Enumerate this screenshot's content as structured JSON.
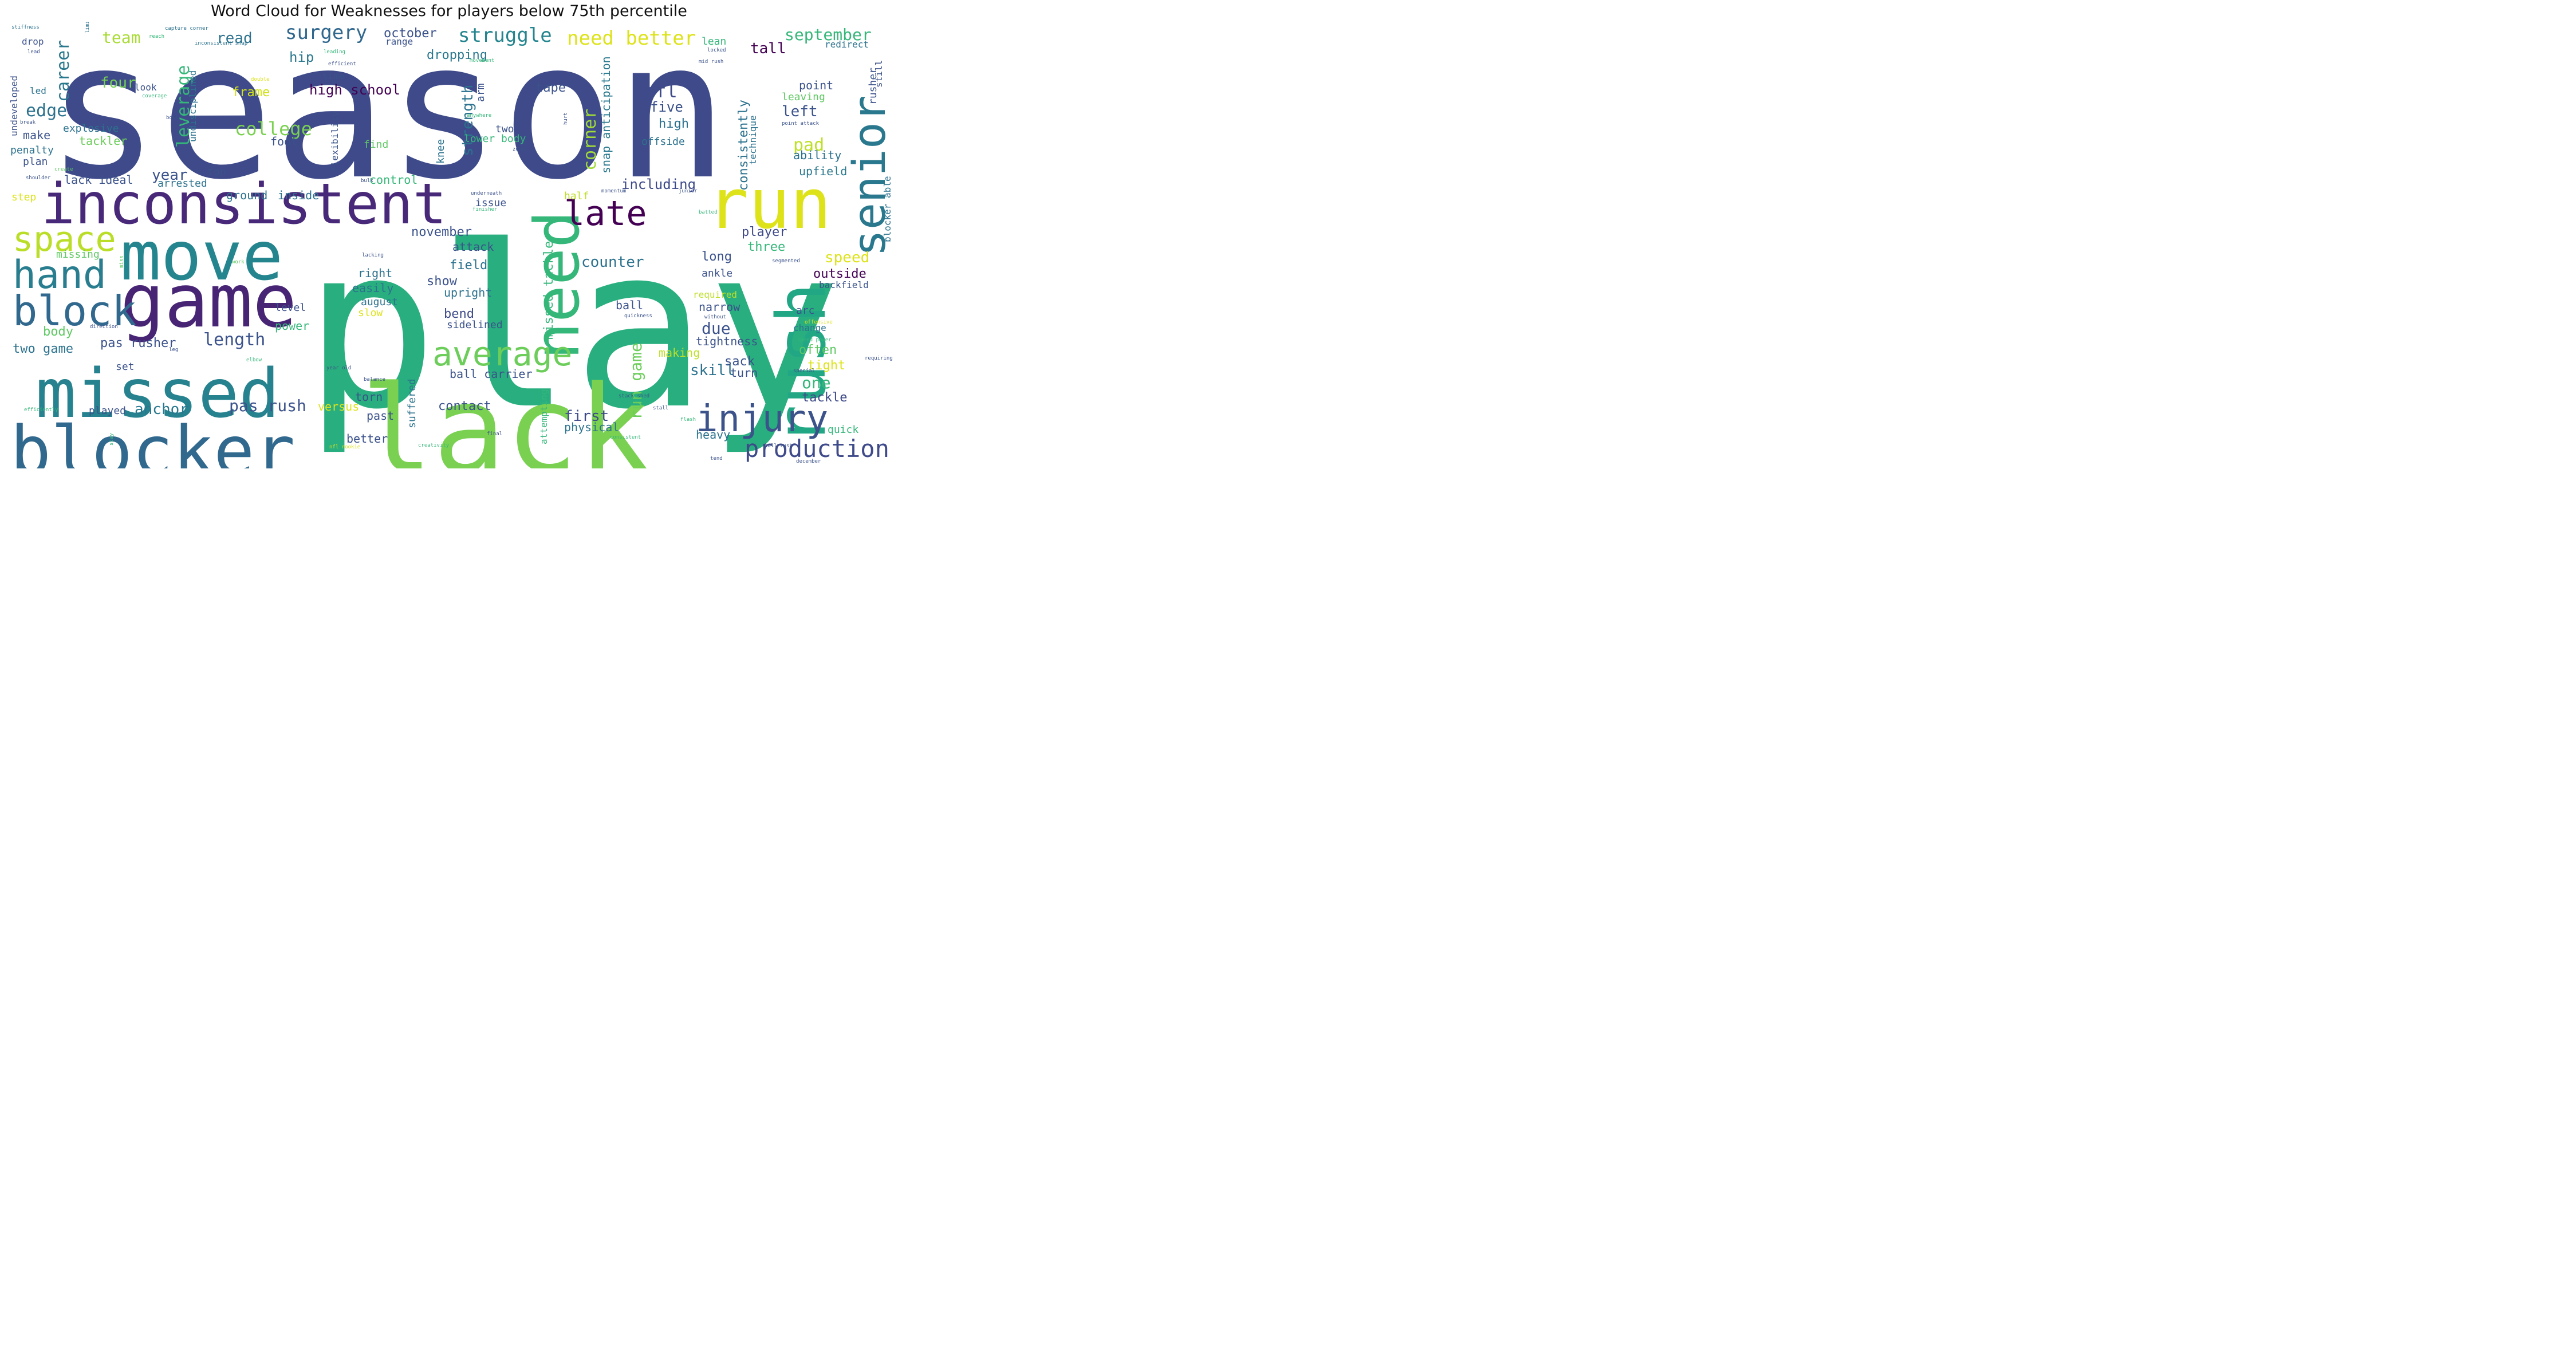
{
  "title": "Word Cloud for Weaknesses for players below 75th percentile",
  "palette": [
    "#440154",
    "#472c7a",
    "#3b518b",
    "#2c718e",
    "#21908d",
    "#27ad81",
    "#5cc863",
    "#aadc32",
    "#dde318"
  ],
  "words": [
    {
      "text": "season",
      "color": "#3e4a89"
    },
    {
      "text": "play",
      "color": "#29af7f"
    },
    {
      "text": "lack",
      "color": "#7ad151"
    },
    {
      "text": "blocker",
      "color": "#31688e"
    },
    {
      "text": "missed",
      "color": "#26828e"
    },
    {
      "text": "inconsistent",
      "color": "#482878"
    },
    {
      "text": "game",
      "color": "#482475"
    },
    {
      "text": "move",
      "color": "#25858e"
    },
    {
      "text": "run",
      "color": "#dde318"
    },
    {
      "text": "rush",
      "color": "#22a785"
    },
    {
      "text": "need",
      "color": "#35b779"
    },
    {
      "text": "senior",
      "color": "#2a788e"
    },
    {
      "text": "block",
      "color": "#31688e"
    },
    {
      "text": "hand",
      "color": "#287d8e"
    },
    {
      "text": "space",
      "color": "#bade28"
    },
    {
      "text": "late",
      "color": "#440154"
    },
    {
      "text": "injury",
      "color": "#3b528b"
    },
    {
      "text": "average",
      "color": "#6ccd5a"
    },
    {
      "text": "production",
      "color": "#3e4a89"
    },
    {
      "text": "surgery",
      "color": "#31688e"
    },
    {
      "text": "struggle",
      "color": "#25858e"
    },
    {
      "text": "need better",
      "color": "#dde318"
    },
    {
      "text": "career",
      "color": "#2a788e"
    },
    {
      "text": "edge",
      "color": "#2c728e"
    },
    {
      "text": "leverage",
      "color": "#35b779"
    },
    {
      "text": "college",
      "color": "#7ad151"
    },
    {
      "text": "nfl",
      "color": "#3e4a89"
    },
    {
      "text": "corner",
      "color": "#a0da39"
    },
    {
      "text": "length",
      "color": "#3b528b"
    },
    {
      "text": "team",
      "color": "#a8db34"
    },
    {
      "text": "read",
      "color": "#2c728e"
    },
    {
      "text": "october",
      "color": "#3b528b"
    },
    {
      "text": "september",
      "color": "#35b779"
    },
    {
      "text": "tall",
      "color": "#440154"
    },
    {
      "text": "hip",
      "color": "#2a788e"
    },
    {
      "text": "dropping",
      "color": "#2a788e"
    },
    {
      "text": "four",
      "color": "#75d054"
    },
    {
      "text": "frame",
      "color": "#d0e11c"
    },
    {
      "text": "high school",
      "color": "#440154"
    },
    {
      "text": "strength",
      "color": "#2c728e"
    },
    {
      "text": "tape",
      "color": "#3b528b"
    },
    {
      "text": "five",
      "color": "#3b528b"
    },
    {
      "text": "left",
      "color": "#3b528b"
    },
    {
      "text": "pad",
      "color": "#bddf26"
    },
    {
      "text": "consistently",
      "color": "#2c728e"
    },
    {
      "text": "snap anticipation",
      "color": "#2a788e"
    },
    {
      "text": "year",
      "color": "#3b528b"
    },
    {
      "text": "including",
      "color": "#3e4a89"
    },
    {
      "text": "pas rush",
      "color": "#3b528b"
    },
    {
      "text": "anchor",
      "color": "#2a788e"
    },
    {
      "text": "run game",
      "color": "#6ccd5a"
    },
    {
      "text": "first",
      "color": "#3e4a89"
    },
    {
      "text": "missed tackle",
      "color": "#35b779"
    },
    {
      "text": "counter",
      "color": "#2c728e"
    },
    {
      "text": "november",
      "color": "#3b528b"
    },
    {
      "text": "player",
      "color": "#3e4a89"
    },
    {
      "text": "show",
      "color": "#3b528b"
    },
    {
      "text": "speed",
      "color": "#dde318"
    },
    {
      "text": "outside",
      "color": "#440154"
    },
    {
      "text": "skill",
      "color": "#2c728e"
    },
    {
      "text": "one",
      "color": "#35b779"
    },
    {
      "text": "contact",
      "color": "#3b528b"
    },
    {
      "text": "due",
      "color": "#3b528b"
    },
    {
      "text": "body",
      "color": "#5ec962"
    },
    {
      "text": "pas rusher",
      "color": "#3b528b"
    },
    {
      "text": "two game",
      "color": "#2c728e"
    },
    {
      "text": "upfield",
      "color": "#2a788e"
    },
    {
      "text": "ability",
      "color": "#2c728e"
    },
    {
      "text": "high",
      "color": "#2c728e"
    },
    {
      "text": "offside",
      "color": "#2c728e"
    },
    {
      "text": "lack ideal",
      "color": "#3b528b"
    },
    {
      "text": "inside",
      "color": "#2c728e"
    },
    {
      "text": "ground",
      "color": "#2c728e"
    },
    {
      "text": "control",
      "color": "#35b779"
    },
    {
      "text": "bend",
      "color": "#3e4a89"
    },
    {
      "text": "sidelined",
      "color": "#3b528b"
    },
    {
      "text": "upright",
      "color": "#2c728e"
    },
    {
      "text": "field",
      "color": "#2c728e"
    },
    {
      "text": "attack",
      "color": "#3b528b"
    },
    {
      "text": "tackle",
      "color": "#3e4a89"
    },
    {
      "text": "often",
      "color": "#5ec962"
    },
    {
      "text": "tight",
      "color": "#dde318"
    },
    {
      "text": "sack",
      "color": "#3b528b"
    },
    {
      "text": "turn",
      "color": "#3b528b"
    },
    {
      "text": "narrow",
      "color": "#3b528b"
    },
    {
      "text": "ball",
      "color": "#3b528b"
    },
    {
      "text": "ball carrier",
      "color": "#3b528b"
    },
    {
      "text": "suffered",
      "color": "#2c728e"
    },
    {
      "text": "making",
      "color": "#bddf26"
    },
    {
      "text": "tightness",
      "color": "#3b528b"
    },
    {
      "text": "heavy",
      "color": "#2c728e"
    },
    {
      "text": "physical",
      "color": "#2c728e"
    },
    {
      "text": "better",
      "color": "#3b528b"
    },
    {
      "text": "versus",
      "color": "#dde318"
    },
    {
      "text": "past",
      "color": "#3b528b"
    },
    {
      "text": "torn",
      "color": "#3b528b"
    },
    {
      "text": "played",
      "color": "#3b528b"
    },
    {
      "text": "set",
      "color": "#3b528b"
    },
    {
      "text": "power",
      "color": "#35b779"
    },
    {
      "text": "level",
      "color": "#3b528b"
    },
    {
      "text": "tackler",
      "color": "#6ccd5a"
    },
    {
      "text": "make",
      "color": "#3b528b"
    },
    {
      "text": "explosive",
      "color": "#2c728e"
    },
    {
      "text": "penalty",
      "color": "#2c728e"
    },
    {
      "text": "plan",
      "color": "#3b528b"
    },
    {
      "text": "foot",
      "color": "#3b528b"
    },
    {
      "text": "two",
      "color": "#3b528b"
    },
    {
      "text": "lower body",
      "color": "#35b779"
    },
    {
      "text": "find",
      "color": "#5ec962"
    },
    {
      "text": "knee",
      "color": "#2c728e"
    },
    {
      "text": "arm",
      "color": "#3b528b"
    },
    {
      "text": "flexibility",
      "color": "#3b528b"
    },
    {
      "text": "undisciplined",
      "color": "#2c728e"
    },
    {
      "text": "undeveloped",
      "color": "#3b528b"
    },
    {
      "text": "led",
      "color": "#2c728e"
    },
    {
      "text": "look",
      "color": "#3b528b"
    },
    {
      "text": "drop",
      "color": "#3b528b"
    },
    {
      "text": "time",
      "color": "#3b528b"
    },
    {
      "text": "range",
      "color": "#3b528b"
    },
    {
      "text": "lean",
      "color": "#35b779"
    },
    {
      "text": "point",
      "color": "#3b528b"
    },
    {
      "text": "leaving",
      "color": "#5ec962"
    },
    {
      "text": "rusher",
      "color": "#3b528b"
    },
    {
      "text": "still",
      "color": "#3b528b"
    },
    {
      "text": "technique",
      "color": "#2c728e"
    },
    {
      "text": "blocker able",
      "color": "#2c728e"
    },
    {
      "text": "redirect",
      "color": "#2c728e"
    },
    {
      "text": "long",
      "color": "#3b528b"
    },
    {
      "text": "three",
      "color": "#35b779"
    },
    {
      "text": "ankle",
      "color": "#3b528b"
    },
    {
      "text": "backfield",
      "color": "#3b528b"
    },
    {
      "text": "required",
      "color": "#bddf26"
    },
    {
      "text": "arc",
      "color": "#3b528b"
    },
    {
      "text": "change",
      "color": "#2c728e"
    },
    {
      "text": "quick",
      "color": "#35b779"
    },
    {
      "text": "right",
      "color": "#2c728e"
    },
    {
      "text": "easily",
      "color": "#2c728e"
    },
    {
      "text": "august",
      "color": "#2c728e"
    },
    {
      "text": "slow",
      "color": "#dde318"
    },
    {
      "text": "half",
      "color": "#bddf26"
    },
    {
      "text": "top",
      "color": "#3b528b"
    },
    {
      "text": "arrested",
      "color": "#2c728e"
    },
    {
      "text": "issue",
      "color": "#3b528b"
    },
    {
      "text": "attempting",
      "color": "#35b779"
    },
    {
      "text": "missing",
      "color": "#5ec962"
    },
    {
      "text": "step",
      "color": "#dde318"
    },
    {
      "text": "stiffness",
      "color": "#2c728e"
    },
    {
      "text": "limited",
      "color": "#2c728e"
    },
    {
      "text": "capture corner",
      "color": "#2c728e"
    },
    {
      "text": "reach",
      "color": "#35b779"
    },
    {
      "text": "inconsistent snap",
      "color": "#2c728e"
    },
    {
      "text": "lead",
      "color": "#3b528b"
    },
    {
      "text": "leading",
      "color": "#35b779"
    },
    {
      "text": "efficient",
      "color": "#3b528b"
    },
    {
      "text": "movement",
      "color": "#35b779"
    },
    {
      "text": "locked",
      "color": "#3b528b"
    },
    {
      "text": "mid rush",
      "color": "#3b528b"
    },
    {
      "text": "double",
      "color": "#dde318"
    },
    {
      "text": "coverage",
      "color": "#35b779"
    },
    {
      "text": "bowl",
      "color": "#3b528b"
    },
    {
      "text": "break",
      "color": "#3b528b"
    },
    {
      "text": "anywhere",
      "color": "#35b779"
    },
    {
      "text": "hurt",
      "color": "#3b528b"
    },
    {
      "text": "point attack",
      "color": "#3b528b"
    },
    {
      "text": "zone",
      "color": "#3b528b"
    },
    {
      "text": "create",
      "color": "#5ec962"
    },
    {
      "text": "shoulder",
      "color": "#3b528b"
    },
    {
      "text": "bulk",
      "color": "#3b528b"
    },
    {
      "text": "momentum",
      "color": "#3b528b"
    },
    {
      "text": "junior",
      "color": "#3b528b"
    },
    {
      "text": "underneath",
      "color": "#3b528b"
    },
    {
      "text": "finisher",
      "color": "#35b779"
    },
    {
      "text": "batted",
      "color": "#35b779"
    },
    {
      "text": "lacking",
      "color": "#3b528b"
    },
    {
      "text": "segmented",
      "color": "#3b528b"
    },
    {
      "text": "work",
      "color": "#5ec962"
    },
    {
      "text": "miss",
      "color": "#5ec962"
    },
    {
      "text": "direction",
      "color": "#3b528b"
    },
    {
      "text": "quickness",
      "color": "#3b528b"
    },
    {
      "text": "without",
      "color": "#3b528b"
    },
    {
      "text": "offensive",
      "color": "#dde318"
    },
    {
      "text": "speed power",
      "color": "#35b779"
    },
    {
      "text": "leg",
      "color": "#3b528b"
    },
    {
      "text": "requiring",
      "color": "#3b528b"
    },
    {
      "text": "elbow",
      "color": "#35b779"
    },
    {
      "text": "year old",
      "color": "#3b528b"
    },
    {
      "text": "balance",
      "color": "#3b528b"
    },
    {
      "text": "special",
      "color": "#3b528b"
    },
    {
      "text": "stack shed",
      "color": "#3b528b"
    },
    {
      "text": "stall",
      "color": "#3b528b"
    },
    {
      "text": "efficiently",
      "color": "#35b779"
    },
    {
      "text": "flash",
      "color": "#35b779"
    },
    {
      "text": "final",
      "color": "#3b528b"
    },
    {
      "text": "consistent",
      "color": "#35b779"
    },
    {
      "text": "stay",
      "color": "#35b779"
    },
    {
      "text": "nfl rookie",
      "color": "#dde318"
    },
    {
      "text": "creativity",
      "color": "#35b779"
    },
    {
      "text": "bull rush",
      "color": "#3b528b"
    },
    {
      "text": "tend",
      "color": "#3b528b"
    },
    {
      "text": "december",
      "color": "#3b528b"
    }
  ]
}
